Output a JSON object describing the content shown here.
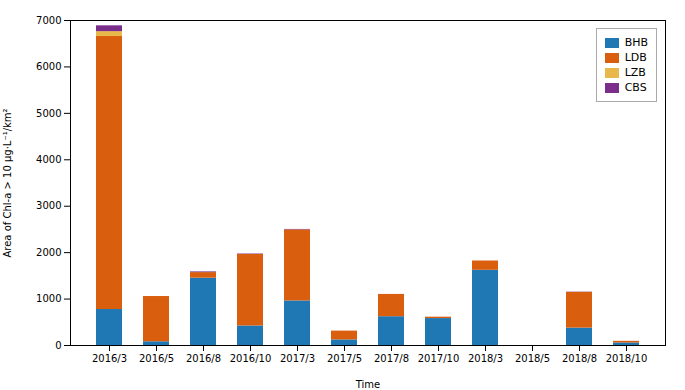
{
  "chart_data": {
    "type": "bar",
    "stacked": true,
    "categories": [
      "2016/3",
      "2016/5",
      "2016/8",
      "2016/10",
      "2017/3",
      "2017/5",
      "2017/8",
      "2017/10",
      "2018/3",
      "2018/5",
      "2018/8",
      "2018/10"
    ],
    "series": [
      {
        "name": "BHB",
        "color": "#1f77b4",
        "values": [
          775,
          80,
          1450,
          420,
          960,
          120,
          620,
          580,
          1620,
          0,
          375,
          55
        ]
      },
      {
        "name": "LDB",
        "color": "#d95f0e",
        "values": [
          5880,
          975,
          120,
          1540,
          1530,
          190,
          480,
          30,
          200,
          0,
          770,
          35
        ]
      },
      {
        "name": "LZB",
        "color": "#e8b84b",
        "values": [
          105,
          0,
          0,
          0,
          0,
          0,
          0,
          0,
          0,
          0,
          0,
          0
        ]
      },
      {
        "name": "CBS",
        "color": "#7b2d8b",
        "values": [
          125,
          0,
          15,
          10,
          10,
          0,
          0,
          0,
          0,
          0,
          5,
          0
        ]
      }
    ],
    "xlabel": "Time",
    "ylabel": "Area of Chl-a > 10 μg·L⁻¹/km²",
    "ylim": [
      0,
      7000
    ],
    "yticks": [
      0,
      1000,
      2000,
      3000,
      4000,
      5000,
      6000,
      7000
    ],
    "legend": "upper right",
    "grid": false
  }
}
